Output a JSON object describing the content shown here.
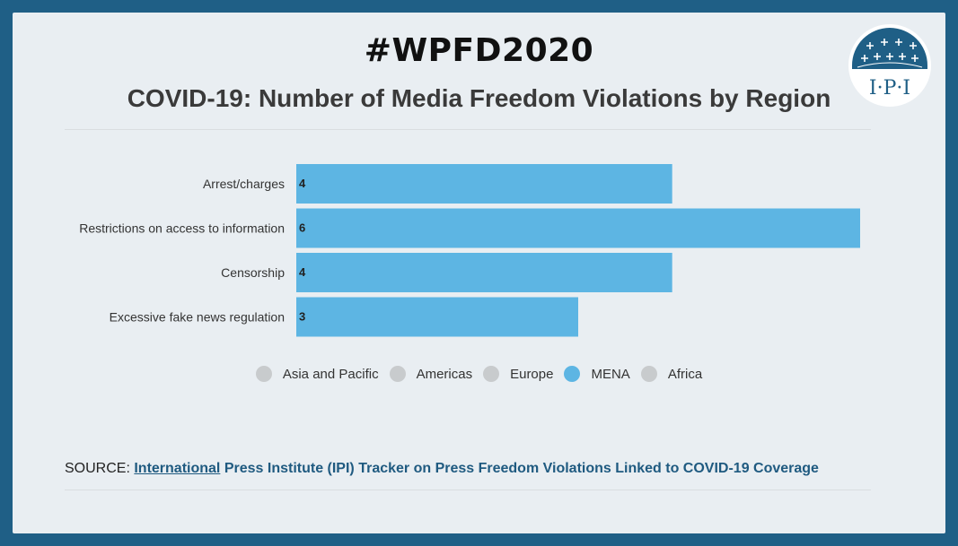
{
  "header": {
    "hashtag": "#WPFD2020",
    "title": "COVID-19: Number of Media Freedom Violations by Region"
  },
  "logo": {
    "text": "I·P·I",
    "icon": "ipi-globe-logo"
  },
  "colors": {
    "accent": "#5db5e3",
    "inactive": "#c8cbcd",
    "frame": "#1f5f86",
    "background": "#e9eef2"
  },
  "chart_data": {
    "type": "bar",
    "orientation": "horizontal",
    "title": "COVID-19: Number of Media Freedom Violations by Region",
    "categories": [
      "Arrest/charges",
      "Restrictions on access to information",
      "Censorship",
      "Excessive fake news regulation"
    ],
    "series": [
      {
        "name": "MENA",
        "values": [
          4,
          6,
          4,
          3
        ],
        "color": "#5db5e3"
      }
    ],
    "xlim": [
      0,
      6
    ],
    "grid": false,
    "legend_position": "bottom",
    "legend": [
      {
        "name": "Asia and Pacific",
        "active": false
      },
      {
        "name": "Americas",
        "active": false
      },
      {
        "name": "Europe",
        "active": false
      },
      {
        "name": "MENA",
        "active": true
      },
      {
        "name": "Africa",
        "active": false
      }
    ]
  },
  "source": {
    "label": "SOURCE:",
    "link_first": "International",
    "link_rest": "Press Institute (IPI) Tracker on Press Freedom Violations Linked to COVID-19 Coverage"
  }
}
